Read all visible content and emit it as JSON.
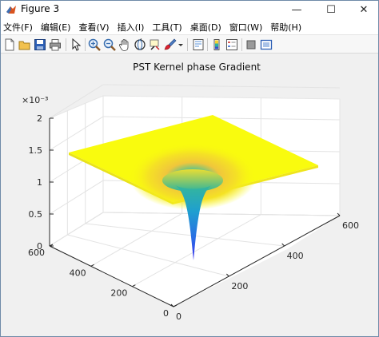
{
  "window": {
    "title": "Figure 3",
    "minimize_glyph": "—",
    "maximize_glyph": "☐",
    "close_glyph": "✕"
  },
  "menu": {
    "items": [
      {
        "name": "menu-file",
        "label": "文件(F)"
      },
      {
        "name": "menu-edit",
        "label": "编辑(E)"
      },
      {
        "name": "menu-view",
        "label": "查看(V)"
      },
      {
        "name": "menu-insert",
        "label": "插入(I)"
      },
      {
        "name": "menu-tools",
        "label": "工具(T)"
      },
      {
        "name": "menu-desktop",
        "label": "桌面(D)"
      },
      {
        "name": "menu-window",
        "label": "窗口(W)"
      },
      {
        "name": "menu-help",
        "label": "帮助(H)"
      }
    ]
  },
  "toolbar": {
    "icons": [
      "new-figure-icon",
      "open-file-icon",
      "save-icon",
      "print-icon",
      "pointer-icon",
      "zoom-in-icon",
      "zoom-out-icon",
      "pan-icon",
      "rotate-3d-icon",
      "data-cursor-icon",
      "brush-icon",
      "dropdown-arrow-icon",
      "link-plot-icon",
      "insert-colorbar-icon",
      "insert-legend-icon",
      "hide-plot-tools-icon",
      "show-plot-tools-icon"
    ]
  },
  "chart_data": {
    "type": "surface",
    "title": "PST Kernel phase Gradient",
    "z_exponent": "×10⁻³",
    "z_ticks": [
      "0",
      "0.5",
      "1",
      "1.5",
      "2"
    ],
    "x_ticks": [
      "0",
      "200",
      "400",
      "600"
    ],
    "y_ticks": [
      "0",
      "200",
      "400",
      "600"
    ],
    "zlim": [
      0,
      0.002
    ],
    "xlim": [
      0,
      600
    ],
    "ylim": [
      0,
      600
    ],
    "surface": {
      "plateau_z": 0.00145,
      "minimum_z": 0.0,
      "minimum_location": [
        300,
        300
      ],
      "colormap": "parula",
      "colors": {
        "high": "#f9fb0e",
        "mid_high": "#fbba38",
        "mid": "#27b7a9",
        "mid_low": "#1f8bd6",
        "low": "#3a2ef0"
      }
    },
    "grid": true
  }
}
